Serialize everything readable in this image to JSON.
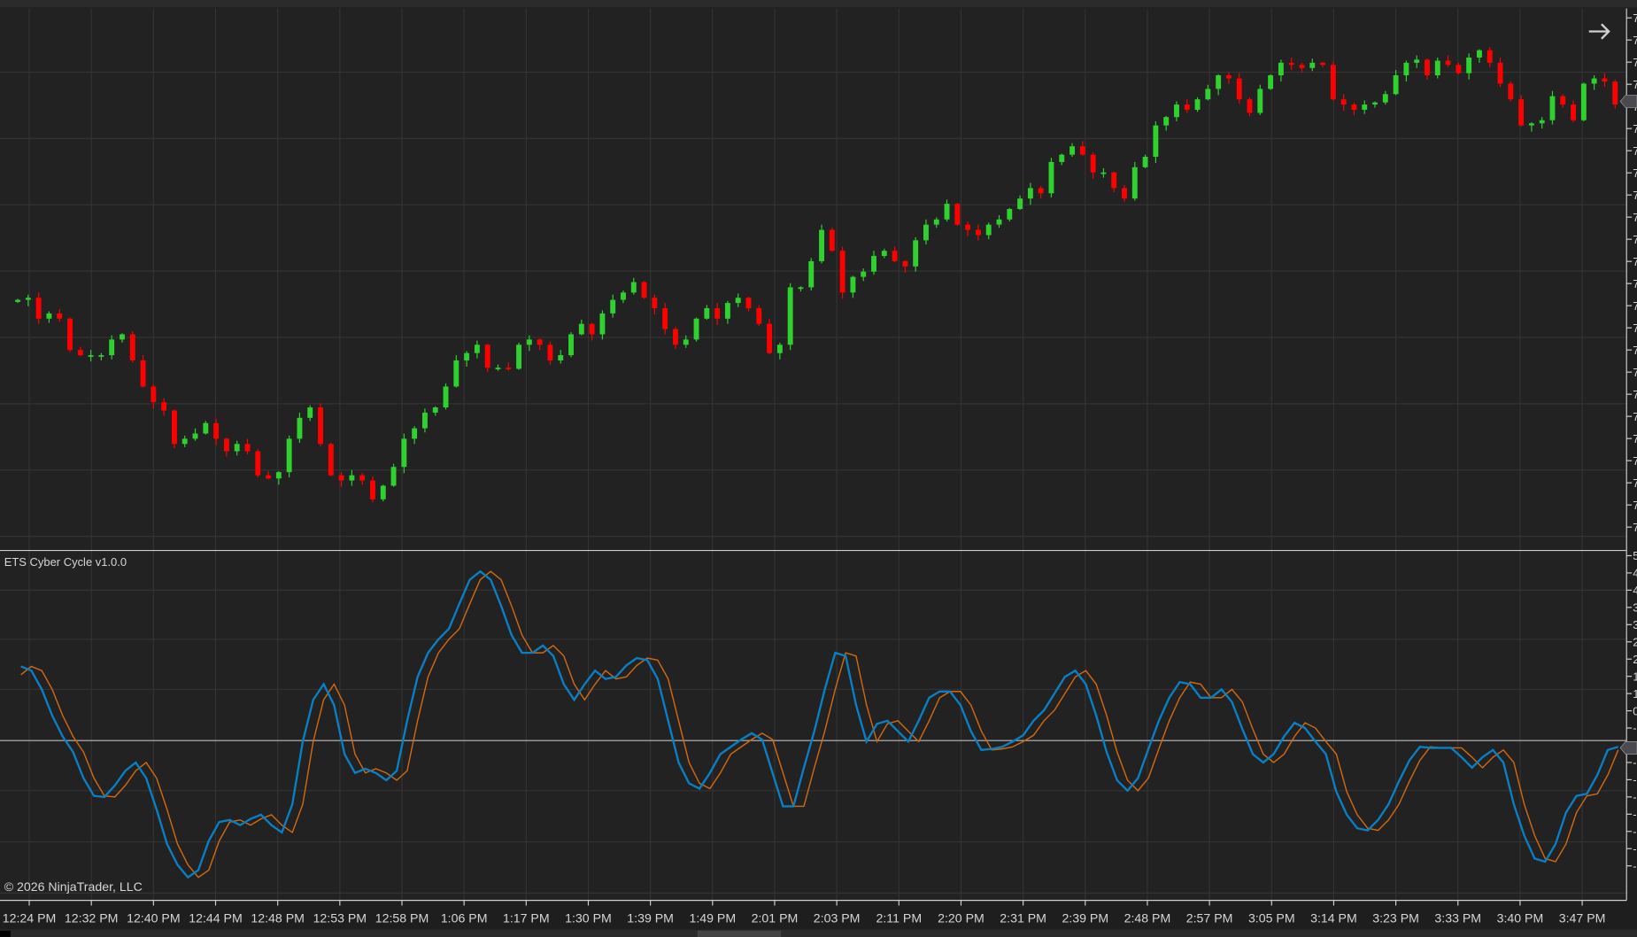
{
  "chart_data": [
    {
      "type": "candlestick",
      "title": "",
      "colors": {
        "up": "#2fd12f",
        "down": "#ff0000",
        "background": "#222222",
        "grid": "#333333"
      },
      "price_axis_labels_visible": [
        "7",
        "7",
        "7",
        "7",
        "7",
        "7",
        "7",
        "7",
        "7",
        "7",
        "7",
        "7",
        "7",
        "7",
        "7",
        "7",
        "7",
        "7",
        "7",
        "7",
        "7",
        "7",
        "7",
        "7"
      ],
      "closes": [
        243,
        245,
        225,
        230,
        225,
        195,
        190,
        190,
        190,
        205,
        210,
        185,
        160,
        145,
        137,
        105,
        110,
        115,
        125,
        110,
        98,
        105,
        98,
        75,
        72,
        78,
        110,
        130,
        140,
        105,
        75,
        70,
        75,
        70,
        52,
        65,
        83,
        110,
        120,
        135,
        140,
        160,
        185,
        192,
        200,
        178,
        178,
        177,
        200,
        205,
        200,
        185,
        190,
        210,
        220,
        210,
        230,
        243,
        250,
        260,
        245,
        235,
        215,
        200,
        205,
        225,
        235,
        225,
        240,
        245,
        235,
        220,
        192,
        200,
        255,
        255,
        280,
        310,
        290,
        250,
        265,
        270,
        285,
        290,
        280,
        275,
        300,
        315,
        320,
        335,
        315,
        310,
        305,
        315,
        320,
        330,
        340,
        350,
        345,
        375,
        382,
        390,
        382,
        365,
        365,
        350,
        340,
        370,
        380,
        410,
        418,
        430,
        425,
        435,
        445,
        458,
        455,
        435,
        422,
        445,
        458,
        470,
        468,
        465,
        470,
        468,
        435,
        430,
        425,
        430,
        432,
        440,
        458,
        470,
        473,
        458,
        472,
        468,
        460,
        475,
        482,
        470,
        450,
        435,
        410,
        412,
        415,
        438,
        430,
        415,
        450,
        455,
        452,
        430
      ]
    },
    {
      "type": "line",
      "title": "ETS Cyber Cycle v1.0.0",
      "zero_line": 0,
      "axis_labels_visible": [
        "5",
        "4",
        "4",
        "3",
        "3",
        "2",
        "2",
        "1",
        "1",
        "0",
        "-",
        "-",
        "-",
        "-",
        "-",
        "-",
        "-",
        "-",
        "-"
      ],
      "series": [
        {
          "color": "#0a7fc4",
          "values": [
            71,
            67,
            49,
            24,
            4,
            -11,
            -36,
            -53,
            -54,
            -43,
            -29,
            -21,
            -36,
            -66,
            -99,
            -119,
            -131,
            -124,
            -96,
            -78,
            -76,
            -81,
            -75,
            -71,
            -81,
            -88,
            -61,
            -1,
            39,
            54,
            34,
            -13,
            -31,
            -27,
            -31,
            -38,
            -29,
            19,
            61,
            84,
            97,
            107,
            131,
            154,
            162,
            154,
            129,
            101,
            84,
            84,
            91,
            81,
            54,
            39,
            54,
            67,
            59,
            61,
            72,
            79,
            77,
            59,
            19,
            -21,
            -41,
            -46,
            -31,
            -13,
            -6,
            1,
            7,
            1,
            -31,
            -63,
            -63,
            -26,
            9,
            49,
            84,
            81,
            34,
            -1,
            16,
            19,
            9,
            -1,
            19,
            41,
            47,
            47,
            34,
            9,
            -9,
            -8,
            -6,
            -1,
            5,
            19,
            29,
            45,
            61,
            67,
            54,
            24,
            -11,
            -38,
            -48,
            -36,
            -8,
            19,
            41,
            56,
            54,
            41,
            41,
            49,
            37,
            11,
            -13,
            -21,
            -13,
            4,
            17,
            12,
            -1,
            -13,
            -49,
            -71,
            -84,
            -86,
            -76,
            -61,
            -39,
            -19,
            -6,
            -7,
            -7,
            -7,
            -16,
            -26,
            -16,
            -9,
            -21,
            -61,
            -91,
            -113,
            -116,
            -99,
            -69,
            -53,
            -51,
            -33,
            -9,
            -6
          ]
        }
      ]
    }
  ],
  "indicator": {
    "title": "ETS Cyber Cycle v1.0.0"
  },
  "copyright": "© 2026 NinjaTrader, LLC",
  "time_axis": [
    "12:24 PM",
    "12:32 PM",
    "12:40 PM",
    "12:44 PM",
    "12:48 PM",
    "12:53 PM",
    "12:58 PM",
    "1:06 PM",
    "1:17 PM",
    "1:30 PM",
    "1:39 PM",
    "1:49 PM",
    "2:01 PM",
    "2:03 PM",
    "2:11 PM",
    "2:20 PM",
    "2:31 PM",
    "2:39 PM",
    "2:48 PM",
    "2:57 PM",
    "3:05 PM",
    "3:14 PM",
    "3:23 PM",
    "3:33 PM",
    "3:40 PM",
    "3:47 PM"
  ],
  "icons": {
    "scroll_right": "arrow-right-icon"
  }
}
